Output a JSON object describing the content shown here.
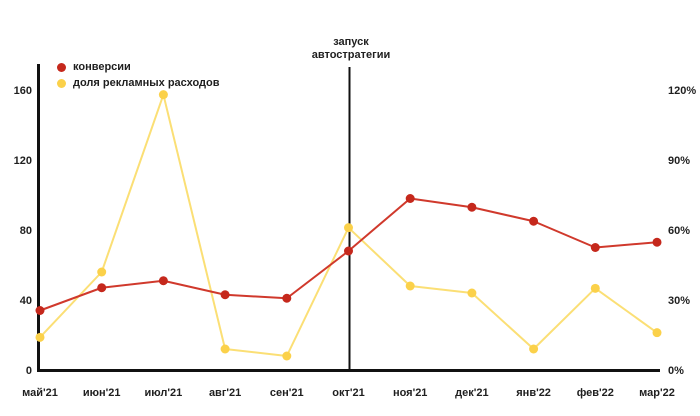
{
  "chart_data": {
    "type": "line",
    "categories": [
      "май'21",
      "июн'21",
      "июл'21",
      "авг'21",
      "сен'21",
      "окт'21",
      "ноя'21",
      "дек'21",
      "янв'22",
      "фев'22",
      "мар'22"
    ],
    "series": [
      {
        "name": "конверсии",
        "axis": "left",
        "values": [
          34,
          47,
          51,
          43,
          41,
          68,
          98,
          93,
          85,
          70,
          73
        ],
        "line_color": "#d0392c",
        "dot_color": "#c5281c"
      },
      {
        "name": "доля рекламных расходов",
        "axis": "right",
        "values": [
          14,
          42,
          118,
          9,
          6,
          61,
          36,
          33,
          9,
          35,
          16
        ],
        "line_color": "#fbdf75",
        "dot_color": "#fbd14a"
      }
    ],
    "left_axis": {
      "tick_labels": [
        "160",
        "120",
        "80",
        "40",
        "0"
      ],
      "tick_values": [
        160,
        120,
        80,
        40,
        0
      ],
      "max": 160
    },
    "right_axis": {
      "tick_labels": [
        "120%",
        "90%",
        "60%",
        "30%",
        "0%"
      ],
      "tick_values": [
        120,
        90,
        60,
        30,
        0
      ],
      "max": 120
    },
    "annotation": {
      "line1": "запуск",
      "line2": "автостратегии",
      "at_category": "окт'21"
    },
    "legend_position": "top-left",
    "grid": false,
    "axis_color": "#111111",
    "text_color": "#1f1f1f",
    "background": "#ffffff"
  }
}
